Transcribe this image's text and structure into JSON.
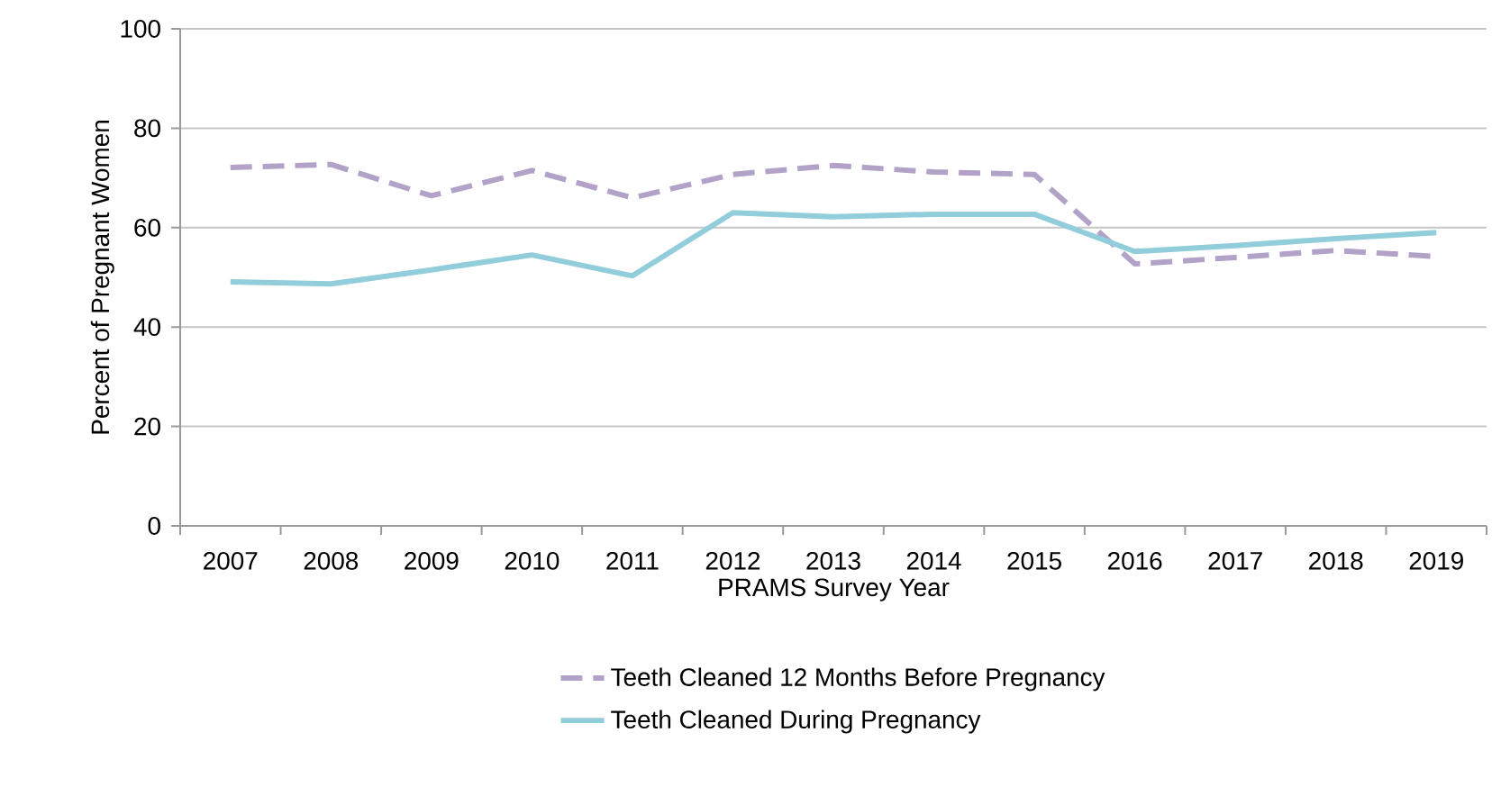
{
  "chart_data": {
    "type": "line",
    "xlabel": "PRAMS Survey Year",
    "ylabel": "Percent of Pregnant Women",
    "categories": [
      "2007",
      "2008",
      "2009",
      "2010",
      "2011",
      "2012",
      "2013",
      "2014",
      "2015",
      "2016",
      "2017",
      "2018",
      "2019"
    ],
    "series": [
      {
        "name": "Teeth Cleaned 12 Months Before Pregnancy",
        "color": "#b3a2c7",
        "line_style": "dashed",
        "values": [
          72.1,
          72.7,
          66.4,
          71.5,
          66.0,
          70.7,
          72.5,
          71.2,
          70.7,
          52.7,
          54.0,
          55.4,
          54.2
        ]
      },
      {
        "name": "Teeth Cleaned  During Pregnancy",
        "color": "#92cddc",
        "line_style": "solid",
        "values": [
          49.1,
          48.7,
          51.5,
          54.5,
          50.3,
          63.0,
          62.2,
          62.7,
          62.7,
          55.2,
          56.4,
          57.8,
          59.0
        ]
      }
    ],
    "ylim": [
      0,
      100
    ],
    "yticks": [
      0,
      20,
      40,
      60,
      80,
      100
    ],
    "grid": "y",
    "legend": "bottom",
    "marker": "none"
  }
}
